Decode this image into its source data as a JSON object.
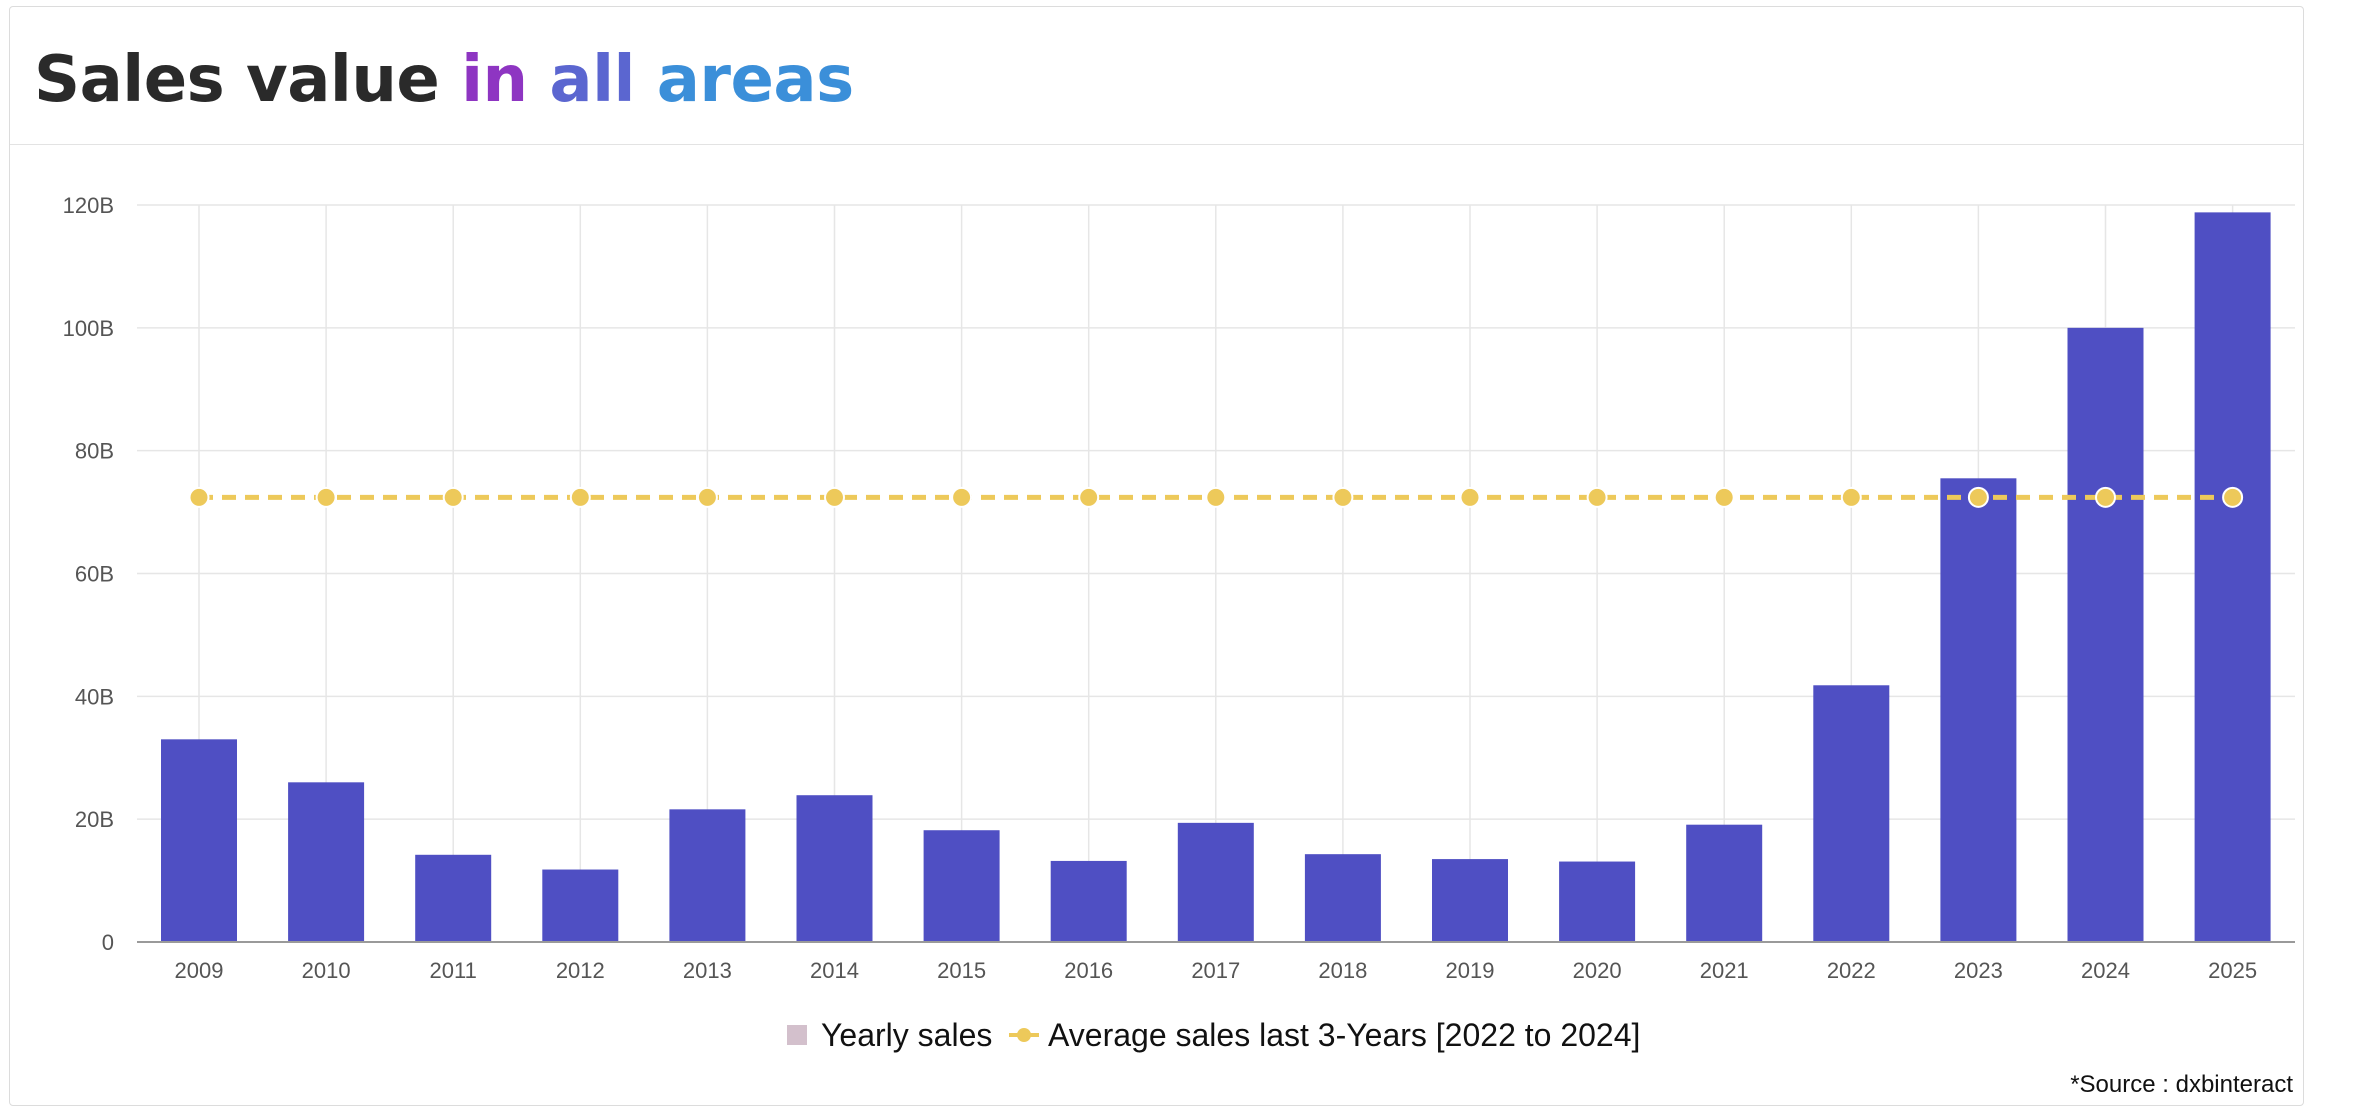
{
  "header": {
    "title_part1": "Sales value",
    "title_part2": "in",
    "title_part3": "all",
    "title_part4": "areas"
  },
  "colors": {
    "bar": "#4f4fc3",
    "average_line": "#edc95a",
    "grid": "#e6e6e6",
    "axis": "#9a9a9a",
    "tick_text": "#555555",
    "legend_bar_swatch": "#d3c0cc",
    "title_in": "#8e35c2",
    "title_all": "#5b66d0",
    "title_areas": "#3b8fd9"
  },
  "chart_data": {
    "type": "bar",
    "title": "Sales value in all areas",
    "xlabel": "",
    "ylabel": "",
    "categories": [
      "2009",
      "2010",
      "2011",
      "2012",
      "2013",
      "2014",
      "2015",
      "2016",
      "2017",
      "2018",
      "2019",
      "2020",
      "2021",
      "2022",
      "2023",
      "2024",
      "2025"
    ],
    "series": [
      {
        "name": "Yearly sales",
        "kind": "bar",
        "values": [
          33,
          26,
          14.2,
          11.8,
          21.6,
          23.9,
          18.2,
          13.2,
          19.4,
          14.3,
          13.5,
          13.1,
          19.1,
          41.8,
          75.5,
          100,
          118.8
        ]
      },
      {
        "name": "Average sales last 3-Years [2022 to 2024]",
        "kind": "line",
        "style": "dashed",
        "values": [
          72.4,
          72.4,
          72.4,
          72.4,
          72.4,
          72.4,
          72.4,
          72.4,
          72.4,
          72.4,
          72.4,
          72.4,
          72.4,
          72.4,
          72.4,
          72.4,
          72.4
        ]
      }
    ],
    "ylim": [
      0,
      120
    ],
    "yticks": [
      0,
      20,
      40,
      60,
      80,
      100,
      120
    ],
    "ytick_labels": [
      "0",
      "20B",
      "40B",
      "60B",
      "80B",
      "100B",
      "120B"
    ],
    "grid": true,
    "legend_position": "bottom"
  },
  "legend": {
    "items": [
      "Yearly sales",
      "Average sales last 3-Years [2022 to 2024]"
    ]
  },
  "footer": {
    "source": "*Source : dxbinteract"
  }
}
